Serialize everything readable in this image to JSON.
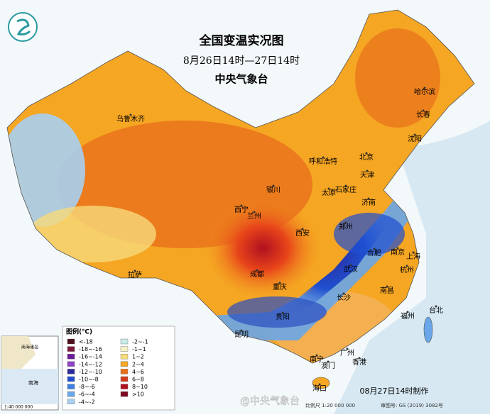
{
  "header": {
    "title": "全国变温实况图",
    "subtitle": "8月26日14时—27日14时",
    "issuer": "中央气象台"
  },
  "cities": [
    "乌鲁木齐",
    "哈尔滨",
    "长春",
    "沈阳",
    "北京",
    "呼和浩特",
    "天津",
    "银川",
    "太原",
    "石家庄",
    "济南",
    "西宁",
    "兰州",
    "郑州",
    "西安",
    "合肥",
    "南京",
    "上海",
    "成都",
    "武汉",
    "杭州",
    "拉萨",
    "重庆",
    "长沙",
    "南昌",
    "台北",
    "福州",
    "贵阳",
    "昆明",
    "广州",
    "南宁",
    "澳门",
    "香港",
    "海口"
  ],
  "legend": {
    "title": "图例(℃)",
    "items": [
      {
        "label": "<-18",
        "color": "#4a0d1c"
      },
      {
        "label": "-18~-16",
        "color": "#7d1a3c"
      },
      {
        "label": "-16~-14",
        "color": "#6a1b9a"
      },
      {
        "label": "-14~-12",
        "color": "#8e44c8"
      },
      {
        "label": "-12~-10",
        "color": "#2b2a9c"
      },
      {
        "label": "-10~-8",
        "color": "#1f4fd0"
      },
      {
        "label": "-8~-6",
        "color": "#3f7fe0"
      },
      {
        "label": "-6~-4",
        "color": "#6aa6e8"
      },
      {
        "label": "-4~-2",
        "color": "#a8cff0"
      },
      {
        "label": "-2~-1",
        "color": "#c8ecea"
      },
      {
        "label": "-1~1",
        "color": "#f4f1c8"
      },
      {
        "label": "1~2",
        "color": "#f8da7a"
      },
      {
        "label": "2~4",
        "color": "#f5a623"
      },
      {
        "label": "4~6",
        "color": "#e8701a"
      },
      {
        "label": "6~8",
        "color": "#d43a1a"
      },
      {
        "label": "8~10",
        "color": "#b01020"
      },
      {
        "label": ">10",
        "color": "#7a0a20"
      }
    ]
  },
  "inset": {
    "title": "南海诸岛",
    "sea": "南海",
    "scale": "1:40 000 000"
  },
  "footer": {
    "scale": "比例尺 1:20 000 000",
    "approval": "审图号: GS (2019) 3082号",
    "made": "08月27日14时制作",
    "watermark": "@中央气象台"
  }
}
